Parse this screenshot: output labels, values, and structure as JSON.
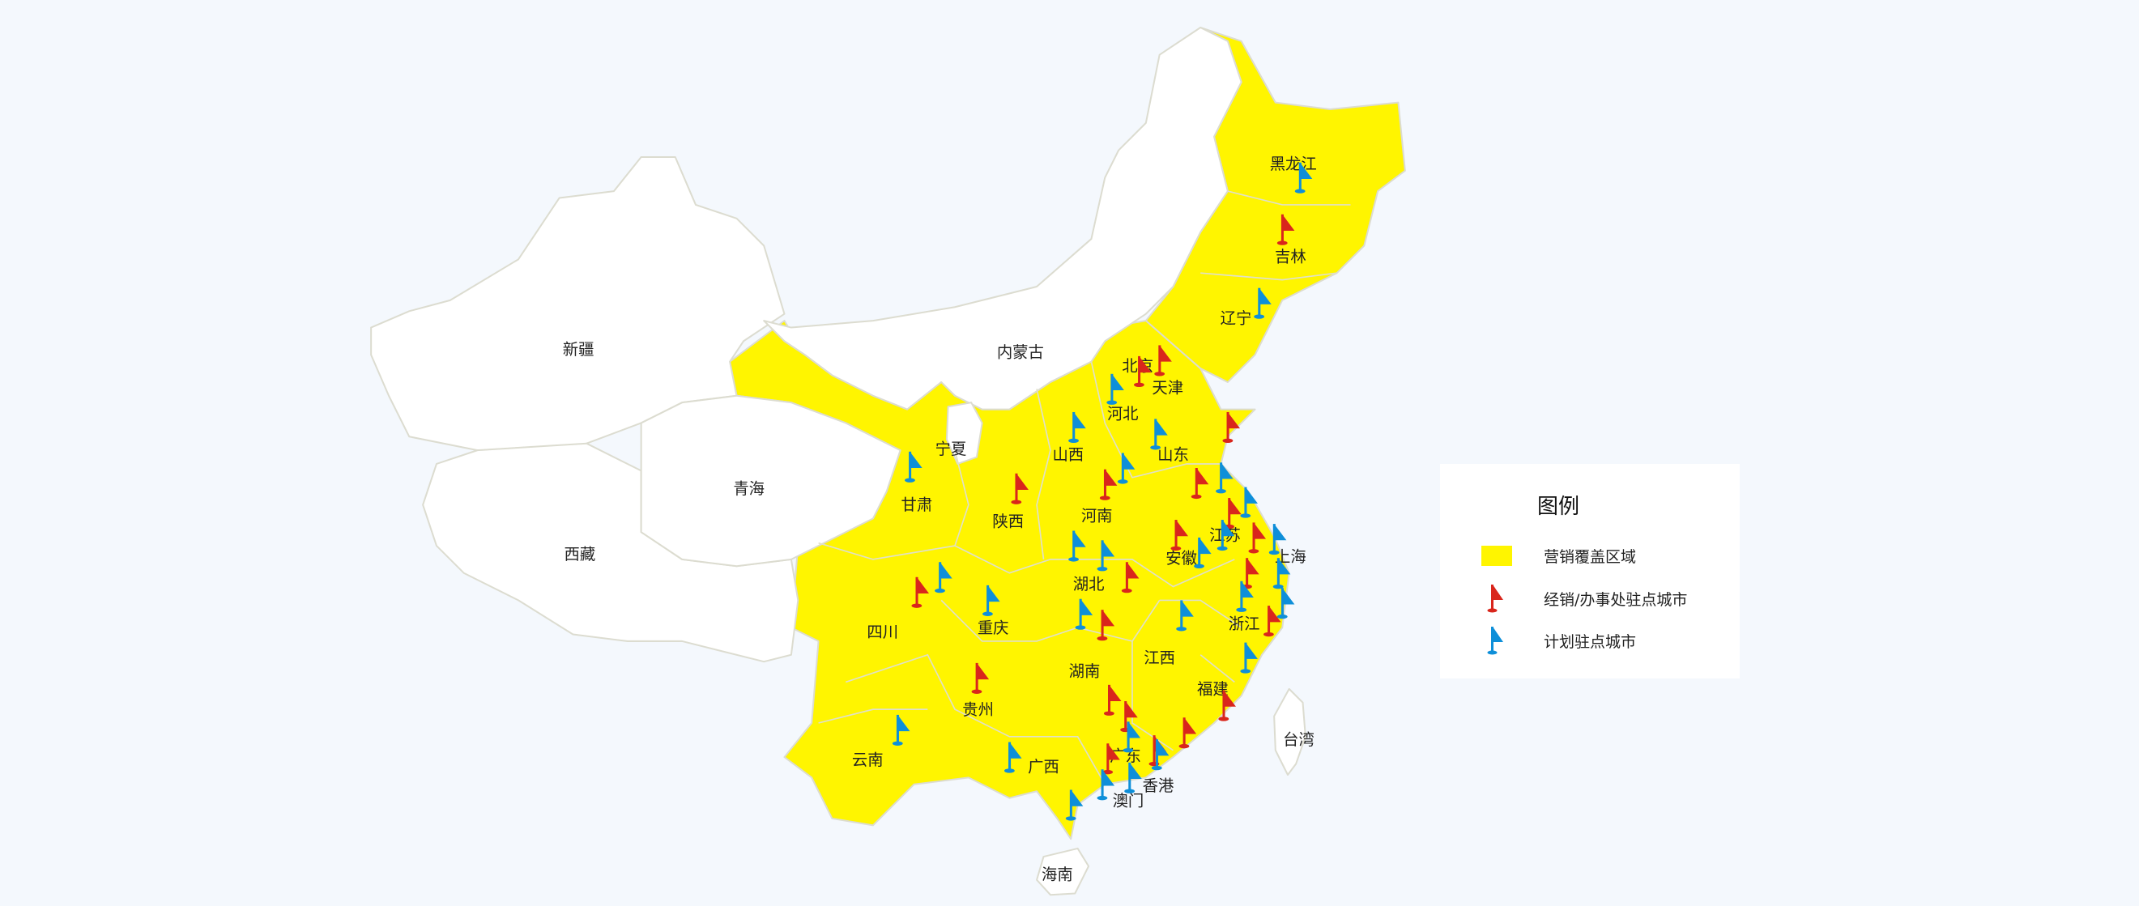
{
  "colors": {
    "coverage": "#fff500",
    "uncovered": "#ffffff",
    "border": "#dcdcd0",
    "office_flag": "#d9261c",
    "planned_flag": "#0e8fd9",
    "background": "#f4f8fd"
  },
  "provinces": {
    "heilongjiang": "黑龙江",
    "jilin": "吉林",
    "liaoning": "辽宁",
    "neimenggu": "内蒙古",
    "beijing": "北京",
    "tianjin": "天津",
    "hebei": "河北",
    "shanxi": "山西",
    "shandong": "山东",
    "xinjiang": "新疆",
    "xizang": "西藏",
    "qinghai": "青海",
    "gansu": "甘肃",
    "ningxia": "宁夏",
    "shaanxi": "陕西",
    "henan": "河南",
    "jiangsu": "江苏",
    "anhui": "安徽",
    "shanghai": "上海",
    "hubei": "湖北",
    "sichuan": "四川",
    "chongqing": "重庆",
    "zhejiang": "浙江",
    "jiangxi": "江西",
    "hunan": "湖南",
    "guizhou": "贵州",
    "fujian": "福建",
    "taiwan": "台湾",
    "yunnan": "云南",
    "guangxi": "广西",
    "guangdong": "广东",
    "xianggang": "香港",
    "aomen": "澳门",
    "hainan": "海南"
  },
  "flags": [
    "planned",
    "office",
    "planned",
    "office",
    "office",
    "planned",
    "planned",
    "planned",
    "office",
    "office",
    "planned",
    "office",
    "planned",
    "planned",
    "office",
    "planned",
    "office",
    "planned",
    "office",
    "planned",
    "planned",
    "planned",
    "office",
    "office",
    "planned",
    "planned",
    "planned",
    "office",
    "planned",
    "planned",
    "office",
    "planned",
    "office",
    "office",
    "office",
    "planned",
    "office",
    "office",
    "office",
    "planned",
    "planned",
    "planned",
    "planned",
    "planned",
    "planned",
    "office",
    "planned",
    "office",
    "planned",
    "office",
    "planned"
  ],
  "legend": {
    "title": "图例",
    "items": [
      {
        "label": "营销覆盖区域",
        "symbol": "yellow-area"
      },
      {
        "label": "经销/办事处驻点城市",
        "symbol": "red-flag"
      },
      {
        "label": "计划驻点城市",
        "symbol": "blue-flag"
      }
    ]
  }
}
